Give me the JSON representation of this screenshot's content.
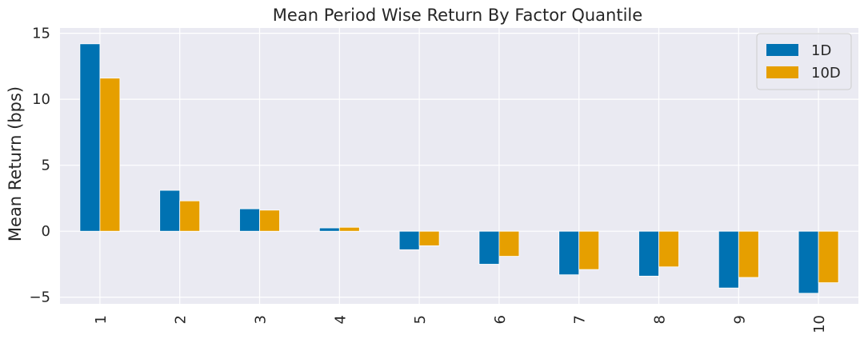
{
  "chart_data": {
    "type": "bar",
    "title": "Mean Period Wise Return By Factor Quantile",
    "xlabel": "",
    "ylabel": "Mean Return (bps)",
    "categories": [
      "1",
      "2",
      "3",
      "4",
      "5",
      "6",
      "7",
      "8",
      "9",
      "10"
    ],
    "series": [
      {
        "name": "1D",
        "color": "#0072B2",
        "values": [
          14.2,
          3.1,
          1.7,
          0.25,
          -1.4,
          -2.5,
          -3.3,
          -3.4,
          -4.3,
          -4.7
        ]
      },
      {
        "name": "10D",
        "color": "#E69F00",
        "values": [
          11.6,
          2.3,
          1.6,
          0.3,
          -1.1,
          -1.9,
          -2.9,
          -2.7,
          -3.5,
          -3.9
        ]
      }
    ],
    "ylim": [
      -5.5,
      15.4
    ],
    "yticks": [
      -5,
      0,
      5,
      10,
      15
    ],
    "ytick_labels": [
      "−5",
      "0",
      "5",
      "10",
      "15"
    ],
    "grid": true,
    "legend_position": "top-right",
    "background": "#EAEAF2"
  }
}
